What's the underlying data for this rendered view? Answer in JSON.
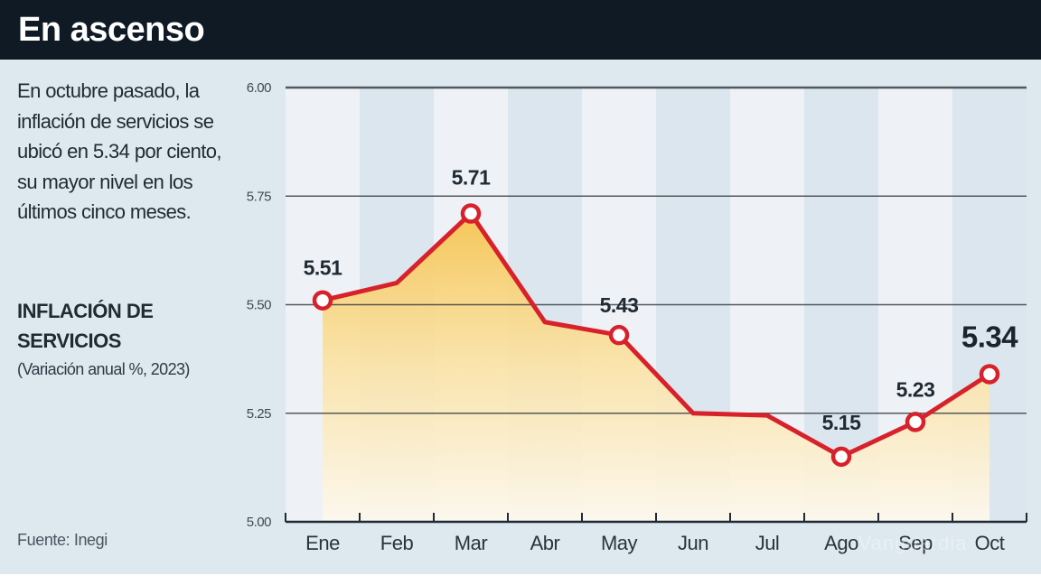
{
  "header": {
    "title": "En ascenso"
  },
  "sidebar": {
    "intro": "En octubre pasado, la inflación de servicios se ubicó en 5.34 por ciento, su mayor nivel en los últimos cinco meses.",
    "indicator_title": "INFLACIÓN DE SERVICIOS",
    "indicator_subtitle": "(Variación anual %, 2023)",
    "source": "Fuente: Inegi"
  },
  "colors": {
    "header_bg": "#0f1a24",
    "panel_bg": "#dde8ef",
    "stripe_light": "#eef2f7",
    "stripe_dark": "#dbe6ee",
    "line": "#d7212b",
    "fill_top": "#f7c95a",
    "fill_bottom": "#fdf6e8",
    "grid": "#3a3f44"
  },
  "watermark": "Vanguardia",
  "chart_data": {
    "type": "area",
    "title": "INFLACIÓN DE SERVICIOS",
    "subtitle": "(Variación anual %, 2023)",
    "xlabel": "",
    "ylabel": "Variación anual %",
    "categories": [
      "Ene",
      "Feb",
      "Mar",
      "Abr",
      "May",
      "Jun",
      "Jul",
      "Ago",
      "Sep",
      "Oct"
    ],
    "series": [
      {
        "name": "Inflación de servicios",
        "values": [
          5.51,
          5.55,
          5.71,
          5.46,
          5.43,
          5.25,
          5.245,
          5.15,
          5.23,
          5.34
        ]
      }
    ],
    "labeled_points": [
      {
        "category": "Ene",
        "value": 5.51,
        "label": "5.51"
      },
      {
        "category": "Mar",
        "value": 5.71,
        "label": "5.71"
      },
      {
        "category": "May",
        "value": 5.43,
        "label": "5.43"
      },
      {
        "category": "Ago",
        "value": 5.15,
        "label": "5.15"
      },
      {
        "category": "Sep",
        "value": 5.23,
        "label": "5.23"
      },
      {
        "category": "Oct",
        "value": 5.34,
        "label": "5.34",
        "highlight": true
      }
    ],
    "yticks": [
      "5.00",
      "5.25",
      "5.50",
      "5.75",
      "6.00"
    ],
    "ylim": [
      5.0,
      6.0
    ],
    "grid": true,
    "legend": null
  }
}
